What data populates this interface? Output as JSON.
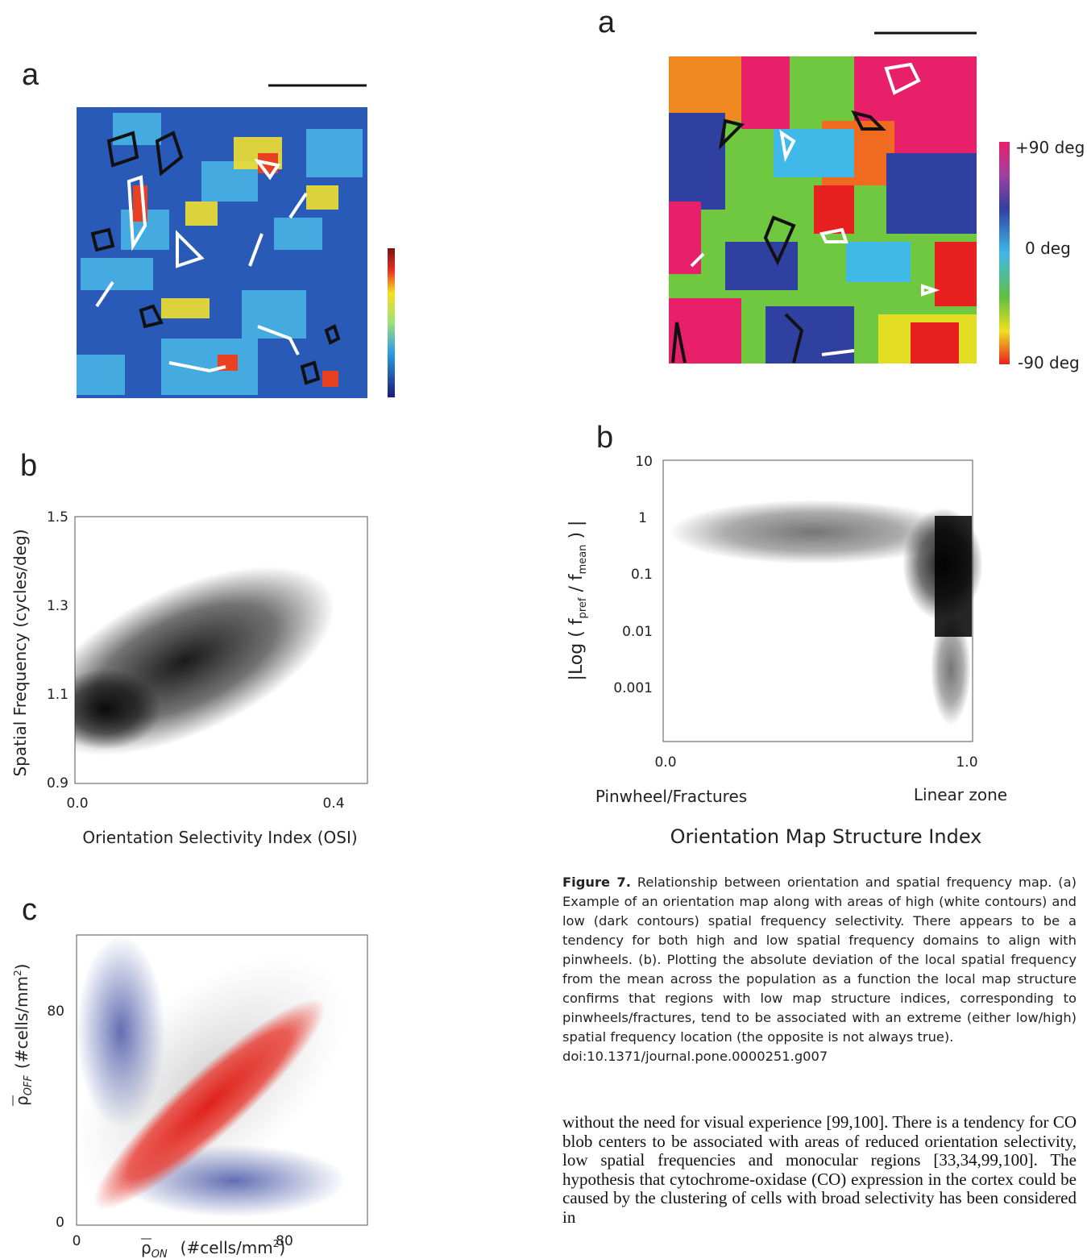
{
  "left": {
    "panel_a": {
      "label": "a"
    },
    "panel_b": {
      "label": "b",
      "y_axis_label": "Spatial Frequency (cycles/deg)",
      "x_axis_label": "Orientation Selectivity Index (OSI)",
      "yticks": [
        "1.5",
        "1.3",
        "1.1",
        "0.9"
      ],
      "xticks": [
        "0.0",
        "0.4"
      ]
    },
    "panel_c": {
      "label": "c",
      "y_symbol": "ρ",
      "y_subscript": "OFF",
      "y_unit": "(#cells/mm",
      "y_unit_sup": "2",
      "y_unit_end": ")",
      "x_symbol": "ρ",
      "x_subscript": "ON",
      "x_unit": "(#cells/mm",
      "x_unit_sup": "2",
      "x_unit_end": ")",
      "yticks": [
        "80",
        "0"
      ],
      "xticks": [
        "0",
        "80"
      ]
    }
  },
  "right": {
    "panel_a": {
      "label": "a",
      "colorbar_labels": [
        "+90 deg",
        "0 deg",
        "-90 deg"
      ]
    },
    "panel_b": {
      "label": "b",
      "y_label_parts": [
        "|Log ( f",
        "pref",
        " / f",
        "mean",
        " ) |"
      ],
      "yticks": [
        "10",
        "1",
        "0.1",
        "0.01",
        "0.001"
      ],
      "xticks": [
        "0.0",
        "1.0"
      ],
      "x_end_labels": [
        "Pinwheel/Fractures",
        "Linear zone"
      ],
      "x_axis_label": "Orientation Map Structure Index"
    }
  },
  "caption": {
    "label": "Figure 7.",
    "text": "Relationship between orientation and spatial frequency map. (a) Example of an orientation map along with areas of high (white contours) and low (dark contours) spatial frequency selectivity. There appears to be a tendency for both high and low spatial frequency domains to align with pinwheels. (b). Plotting the absolute deviation of the local spatial frequency from the mean across the population as a function the local map structure confirms that regions with low map structure indices, corresponding to pinwheels/fractures, tend to be associated with an extreme (either low/high) spatial frequency location (the opposite is not always true).",
    "doi": "doi:10.1371/journal.pone.0000251.g007"
  },
  "body": "without the need for visual experience [99,100]. There is a tendency for CO blob centers to be associated with areas of reduced orientation selectivity, low spatial frequencies and monocular regions [33,34,99,100]. The hypothesis that cytochrome-oxidase (CO) expression in the cortex could be caused by the clustering of cells with broad selectivity has been considered in"
}
